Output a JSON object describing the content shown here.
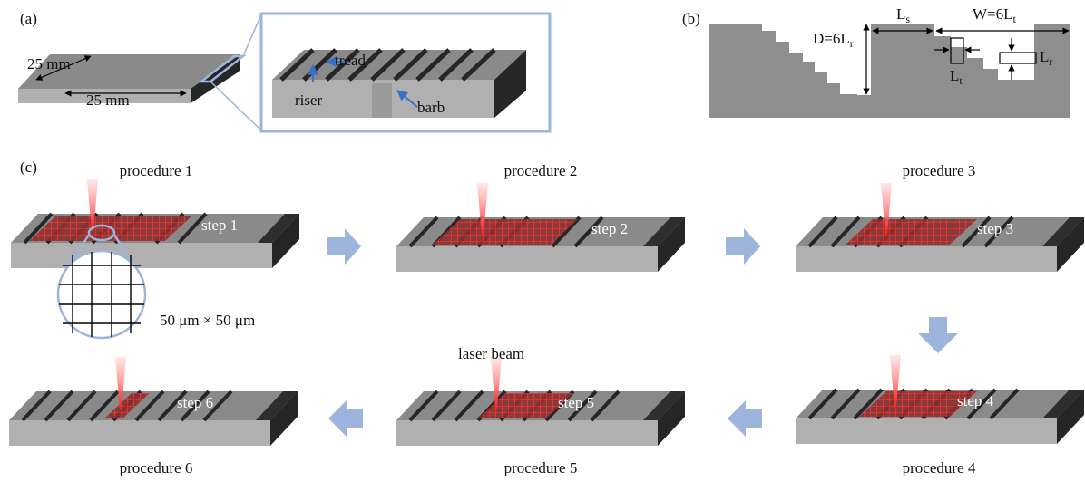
{
  "panel_a": {
    "label": "(a)",
    "width_label": "25 mm",
    "length_label": "25 mm",
    "tread": "tread",
    "riser": "riser",
    "barb": "barb"
  },
  "panel_b": {
    "label": "(b)",
    "depth": {
      "main": "D=6L",
      "sub": "r"
    },
    "spacing": {
      "main": "L",
      "sub": "s"
    },
    "width": {
      "main": "W=6L",
      "sub": "t"
    },
    "tread_length": {
      "main": "L",
      "sub": "t"
    },
    "riser_length": {
      "main": "L",
      "sub": "r"
    }
  },
  "panel_c": {
    "label": "(c)",
    "procedures": [
      {
        "label": "procedure 1",
        "step": "step 1"
      },
      {
        "label": "procedure 2",
        "step": "step 2"
      },
      {
        "label": "procedure 3",
        "step": "step 3"
      },
      {
        "label": "procedure 4",
        "step": "step 4"
      },
      {
        "label": "procedure 5",
        "step": "step 5"
      },
      {
        "label": "procedure 6",
        "step": "step 6"
      }
    ],
    "grid_size": "50 μm × 50 μm",
    "laser": "laser beam"
  }
}
